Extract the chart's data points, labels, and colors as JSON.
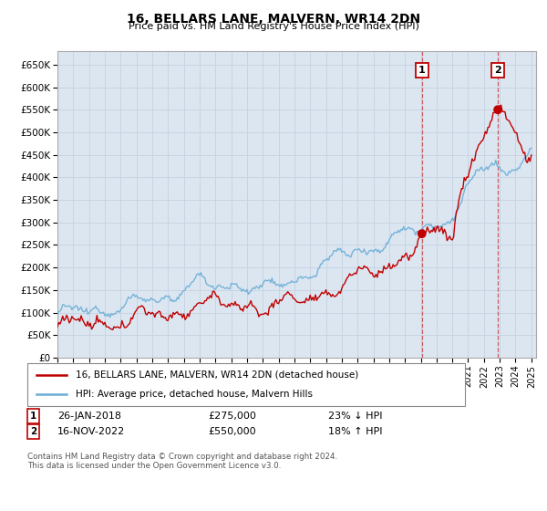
{
  "title": "16, BELLARS LANE, MALVERN, WR14 2DN",
  "subtitle": "Price paid vs. HM Land Registry's House Price Index (HPI)",
  "ylabel_ticks": [
    "£0",
    "£50K",
    "£100K",
    "£150K",
    "£200K",
    "£250K",
    "£300K",
    "£350K",
    "£400K",
    "£450K",
    "£500K",
    "£550K",
    "£600K",
    "£650K"
  ],
  "ytick_values": [
    0,
    50000,
    100000,
    150000,
    200000,
    250000,
    300000,
    350000,
    400000,
    450000,
    500000,
    550000,
    600000,
    650000
  ],
  "ylim": [
    0,
    680000
  ],
  "xlim_start": 1995.0,
  "xlim_end": 2025.3,
  "hpi_color": "#6baed6",
  "property_color": "#c00000",
  "vline_color": "#c00000",
  "vline_alpha": 0.5,
  "grid_color": "#c8d4e3",
  "bg_color": "#ffffff",
  "plot_bg_color": "#dce6f1",
  "transaction1_date": 2018.07,
  "transaction1_price": 275000,
  "transaction2_date": 2022.88,
  "transaction2_price": 550000,
  "legend_property": "16, BELLARS LANE, MALVERN, WR14 2DN (detached house)",
  "legend_hpi": "HPI: Average price, detached house, Malvern Hills",
  "t1_date_str": "26-JAN-2018",
  "t1_price_str": "£275,000",
  "t1_pct_str": "23% ↓ HPI",
  "t2_date_str": "16-NOV-2022",
  "t2_price_str": "£550,000",
  "t2_pct_str": "18% ↑ HPI",
  "copyright": "Contains HM Land Registry data © Crown copyright and database right 2024.\nThis data is licensed under the Open Government Licence v3.0."
}
